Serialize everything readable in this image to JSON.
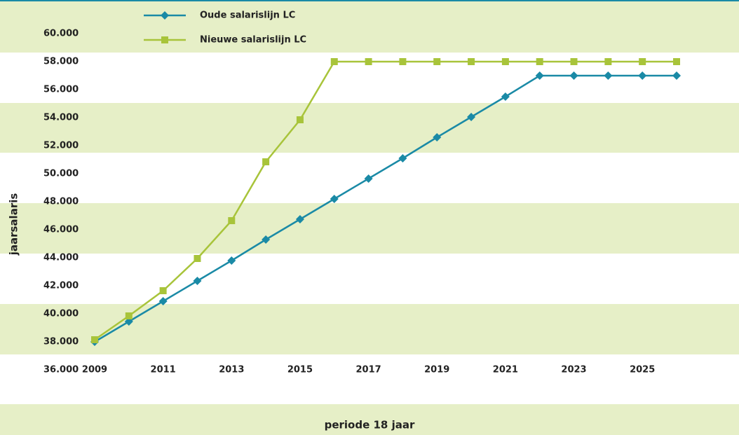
{
  "chart_data": {
    "type": "line",
    "x_label": "periode 18 jaar",
    "y_label": "jaarsalaris",
    "x": [
      2009,
      2010,
      2011,
      2012,
      2013,
      2014,
      2015,
      2016,
      2017,
      2018,
      2019,
      2020,
      2021,
      2022,
      2023,
      2024,
      2025,
      2026
    ],
    "series": [
      {
        "name": "Oude salarislijn LC",
        "color": "#1a8aa6",
        "marker": "diamond",
        "values": [
          38000,
          39450,
          40900,
          42350,
          43800,
          45300,
          46750,
          48200,
          49650,
          51100,
          52600,
          54050,
          55500,
          57000,
          57000,
          57000,
          57000,
          57000
        ]
      },
      {
        "name": "Nieuwe salarislijn LC",
        "color": "#a8c43a",
        "marker": "square",
        "values": [
          38150,
          39850,
          41650,
          43950,
          46650,
          50850,
          53850,
          58000,
          58000,
          58000,
          58000,
          58000,
          58000,
          58000,
          58000,
          58000,
          58000,
          58000
        ]
      }
    ],
    "xlim": [
      2009,
      2026
    ],
    "xticks": [
      2009,
      2011,
      2013,
      2015,
      2017,
      2019,
      2021,
      2023,
      2025
    ],
    "ylim": [
      36000,
      60000
    ],
    "yticks": [
      {
        "value": 36000,
        "label": "36.000"
      },
      {
        "value": 38000,
        "label": "38.000"
      },
      {
        "value": 40000,
        "label": "40.000"
      },
      {
        "value": 42000,
        "label": "42.000"
      },
      {
        "value": 44000,
        "label": "44.000"
      },
      {
        "value": 46000,
        "label": "46.000"
      },
      {
        "value": 48000,
        "label": "48.000"
      },
      {
        "value": 50000,
        "label": "50.000"
      },
      {
        "value": 52000,
        "label": "52.000"
      },
      {
        "value": 54000,
        "label": "54.000"
      },
      {
        "value": 56000,
        "label": "56.000"
      },
      {
        "value": 58000,
        "label": "58.000"
      },
      {
        "value": 60000,
        "label": "60.000"
      }
    ]
  }
}
